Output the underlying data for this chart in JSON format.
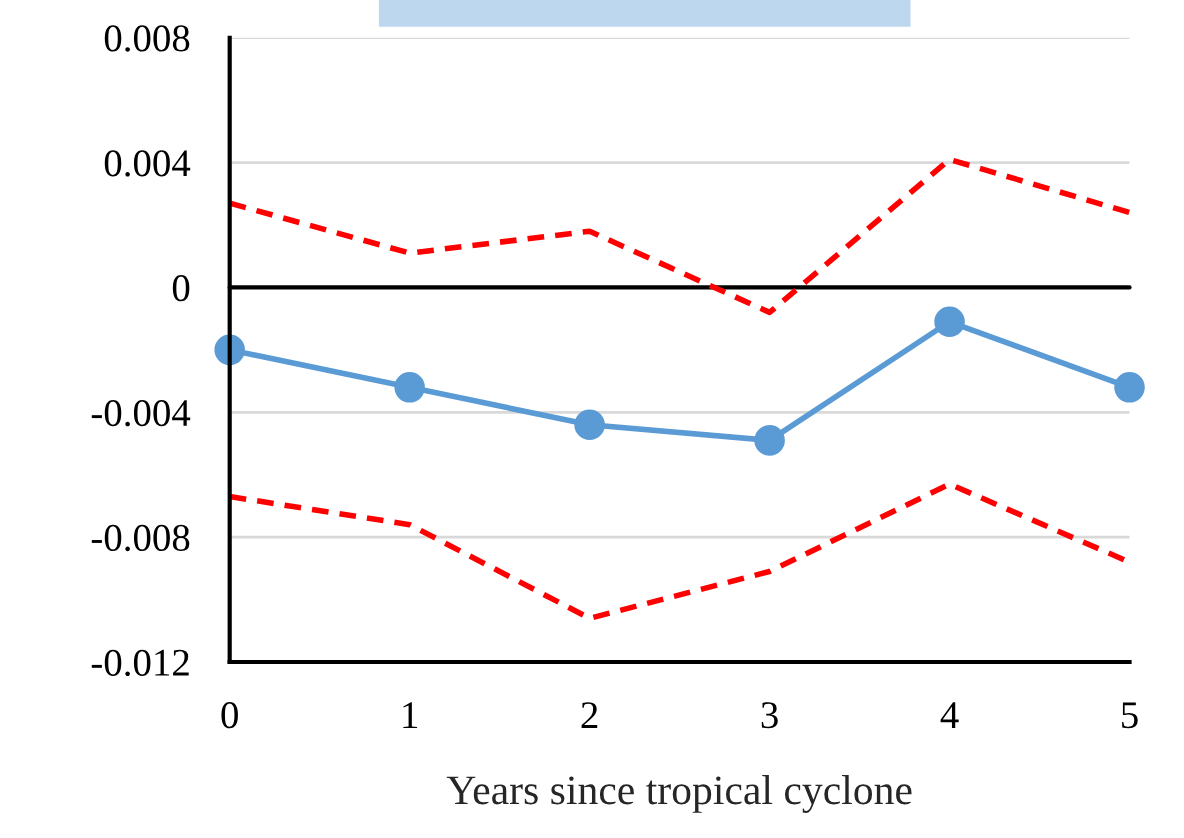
{
  "chart_data": {
    "type": "line",
    "xlabel": "Years since tropical cyclone",
    "x": [
      0,
      1,
      2,
      3,
      4,
      5
    ],
    "xlim": [
      0,
      5
    ],
    "xticks": [
      0,
      1,
      2,
      3,
      4,
      5
    ],
    "ylim": [
      -0.012,
      0.008
    ],
    "yticks": [
      {
        "value": -0.012,
        "label": "-0.012"
      },
      {
        "value": -0.008,
        "label": "-0.008"
      },
      {
        "value": -0.004,
        "label": "-0.004"
      },
      {
        "value": 0,
        "label": "0"
      },
      {
        "value": 0.004,
        "label": "0.004"
      },
      {
        "value": 0.008,
        "label": "0.008"
      }
    ],
    "grid": "y",
    "legend": false,
    "ref_lines": [
      {
        "axis": "y",
        "value": 0,
        "color": "#000000",
        "line_style": "solid"
      }
    ],
    "series": [
      {
        "color": "#5b9bd5",
        "marker": "circle",
        "line_style": "solid",
        "values": [
          -0.002,
          -0.0032,
          -0.0044,
          -0.0049,
          -0.0011,
          -0.0032
        ]
      },
      {
        "color": "#ff0000",
        "marker": "none",
        "line_style": "dashed",
        "values": [
          0.0027,
          0.0011,
          0.0018,
          -0.0008,
          0.0041,
          0.0024
        ]
      },
      {
        "color": "#ff0000",
        "marker": "none",
        "line_style": "dashed",
        "values": [
          -0.0067,
          -0.0076,
          -0.0106,
          -0.0091,
          -0.0063,
          -0.0088
        ]
      }
    ]
  }
}
